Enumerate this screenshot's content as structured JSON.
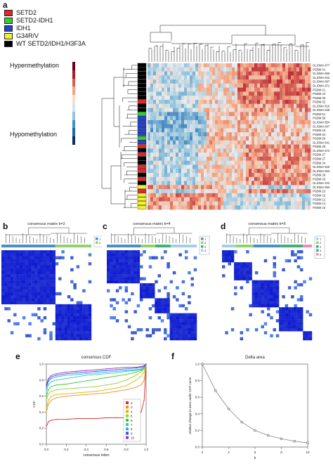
{
  "panel_letters": {
    "a": "a",
    "b": "b",
    "c": "c",
    "d": "d",
    "e": "e",
    "f": "f"
  },
  "legend": [
    {
      "label": "SETD2",
      "color": "#e8262a"
    },
    {
      "label": "SETD2-IDH1",
      "color": "#33cc33"
    },
    {
      "label": "IDH1",
      "color": "#2244cc"
    },
    {
      "label": "G34R/V",
      "color": "#f2f22a"
    },
    {
      "label": "WT SETD2/IDH1/H3F3A",
      "color": "#000000"
    }
  ],
  "colorbar": {
    "top_label": "Hypermethylation",
    "bottom_label": "Hypomethylation",
    "colors": [
      "#67001f",
      "#b2182b",
      "#d6604d",
      "#f4a582",
      "#fddbc7",
      "#d1e5f0",
      "#92c5de",
      "#4393c3",
      "#2166ac",
      "#053061"
    ]
  },
  "chart_data": [
    {
      "type": "heatmap",
      "panel": "a",
      "row_labels": [
        "GLIOMA 677",
        "PGBM 41",
        "GLIOMA 869",
        "GLIOMA 642",
        "GLIOMA 667",
        "GLIOMA 671",
        "PGBM 21",
        "PGBM 44",
        "PGBM 35",
        "PGBM 32",
        "GLIOMA 810",
        "GLIOMA 649",
        "PGBM 51",
        "PGBM 58",
        "GLIOMA 854",
        "GLIOMA 647",
        "PGBM 18",
        "PGBM 54",
        "PGBM 59",
        "GLIOMA 641",
        "PGBM 35",
        "GLIOMA 672",
        "PGBM 27",
        "PGBM 27",
        "PGBM 34",
        "GLIOMA 626",
        "GLIOMA 663",
        "PGBM 28",
        "PGBM 43",
        "GLIOMA 102",
        "GLIOMA 893",
        "PGBM 22",
        "PGBM 15",
        "PGBM 12",
        "PGBM 14",
        "PGBM 16"
      ],
      "row_groups": [
        "WT",
        "WT",
        "WT",
        "WT",
        "WT",
        "WT",
        "WT",
        "WT",
        "WT",
        "SETD2",
        "WT",
        "WT",
        "SETD2-IDH1",
        "IDH1",
        "IDH1",
        "IDH1",
        "IDH1",
        "IDH1",
        "SETD2-IDH1",
        "IDH1",
        "SETD2",
        "WT",
        "SETD2",
        "WT",
        "WT",
        "SETD2",
        "SETD2",
        "WT",
        "SETD2",
        "WT",
        "G34R/V",
        "SETD2",
        "G34R/V",
        "G34R/V",
        "G34R/V",
        "G34R/V"
      ],
      "color_scale": [
        "Hypomethylation",
        "Hypermethylation"
      ]
    },
    {
      "type": "heatmap",
      "panel": "b",
      "title": "consensus matrix k=2",
      "k": 2,
      "legend": [
        "1",
        "2"
      ],
      "cluster_colors": [
        "#4a90c2",
        "#8fd36a"
      ],
      "cluster_fractions": [
        0.6,
        0.4
      ]
    },
    {
      "type": "heatmap",
      "panel": "c",
      "title": "consensus matrix k=4",
      "k": 4,
      "legend": [
        "1",
        "2",
        "3",
        "4"
      ],
      "cluster_colors": [
        "#4a90c2",
        "#8fd36a",
        "#3fb07a",
        "#a6cee3"
      ],
      "cluster_fractions": [
        0.38,
        0.16,
        0.17,
        0.29
      ]
    },
    {
      "type": "heatmap",
      "panel": "d",
      "title": "consensus matrix k=5",
      "k": 5,
      "legend": [
        "1",
        "2",
        "3",
        "4",
        "5"
      ],
      "cluster_colors": [
        "#a6cee3",
        "#8fd36a",
        "#4a90c2",
        "#3fb07a",
        "#f08cb8"
      ],
      "cluster_fractions": [
        0.15,
        0.2,
        0.3,
        0.25,
        0.1
      ]
    },
    {
      "type": "line",
      "panel": "e",
      "title": "consensus CDF",
      "xlabel": "consensus index",
      "ylabel": "CDF",
      "xlim": [
        0,
        1
      ],
      "ylim": [
        0,
        1
      ],
      "xticks": [
        "0.0",
        "0.2",
        "0.4",
        "0.6",
        "0.8",
        "1.0"
      ],
      "yticks": [
        "0.0",
        "0.2",
        "0.4",
        "0.6",
        "0.8",
        "1.0"
      ],
      "x": [
        0.0,
        0.02,
        0.05,
        0.1,
        0.2,
        0.3,
        0.4,
        0.5,
        0.6,
        0.7,
        0.8,
        0.9,
        0.95,
        0.98,
        1.0
      ],
      "series": [
        {
          "name": "2",
          "color": "#e8262a",
          "values": [
            0.22,
            0.28,
            0.3,
            0.31,
            0.31,
            0.32,
            0.32,
            0.32,
            0.33,
            0.33,
            0.33,
            0.34,
            0.4,
            0.55,
            1.0
          ]
        },
        {
          "name": "3",
          "color": "#f28c28",
          "values": [
            0.4,
            0.5,
            0.55,
            0.58,
            0.6,
            0.61,
            0.62,
            0.63,
            0.64,
            0.66,
            0.68,
            0.71,
            0.74,
            0.8,
            1.0
          ]
        },
        {
          "name": "4",
          "color": "#d9b800",
          "values": [
            0.45,
            0.55,
            0.6,
            0.62,
            0.63,
            0.64,
            0.65,
            0.66,
            0.68,
            0.7,
            0.73,
            0.8,
            0.85,
            0.9,
            1.0
          ]
        },
        {
          "name": "5",
          "color": "#9acd32",
          "values": [
            0.55,
            0.63,
            0.66,
            0.68,
            0.69,
            0.7,
            0.71,
            0.72,
            0.74,
            0.76,
            0.8,
            0.86,
            0.9,
            0.94,
            1.0
          ]
        },
        {
          "name": "6",
          "color": "#33cc33",
          "values": [
            0.6,
            0.68,
            0.72,
            0.74,
            0.75,
            0.77,
            0.79,
            0.81,
            0.83,
            0.85,
            0.87,
            0.9,
            0.92,
            0.95,
            1.0
          ]
        },
        {
          "name": "7",
          "color": "#33ccaa",
          "values": [
            0.66,
            0.74,
            0.78,
            0.8,
            0.82,
            0.84,
            0.86,
            0.87,
            0.88,
            0.89,
            0.91,
            0.92,
            0.93,
            0.95,
            1.0
          ]
        },
        {
          "name": "8",
          "color": "#33aaee",
          "values": [
            0.7,
            0.78,
            0.82,
            0.84,
            0.86,
            0.87,
            0.88,
            0.89,
            0.9,
            0.91,
            0.92,
            0.93,
            0.94,
            0.96,
            1.0
          ]
        },
        {
          "name": "9",
          "color": "#3355cc",
          "values": [
            0.72,
            0.8,
            0.84,
            0.86,
            0.88,
            0.89,
            0.9,
            0.91,
            0.92,
            0.93,
            0.94,
            0.95,
            0.96,
            0.97,
            1.0
          ]
        },
        {
          "name": "10",
          "color": "#9933cc",
          "values": [
            0.74,
            0.82,
            0.86,
            0.88,
            0.9,
            0.91,
            0.92,
            0.93,
            0.94,
            0.95,
            0.96,
            0.96,
            0.97,
            0.98,
            1.0
          ]
        }
      ]
    },
    {
      "type": "line",
      "panel": "f",
      "title": "Delta area",
      "xlabel": "k",
      "ylabel": "relative change in area under CDF curve",
      "xlim": [
        2,
        10
      ],
      "ylim": [
        0,
        1.0
      ],
      "xticks": [
        "2",
        "4",
        "6",
        "8",
        "10"
      ],
      "yticks": [
        "0.0",
        "0.2",
        "0.4",
        "0.6",
        "0.8",
        "1.0"
      ],
      "x": [
        2,
        3,
        4,
        5,
        6,
        7,
        8,
        9,
        10
      ],
      "values": [
        1.0,
        0.68,
        0.46,
        0.3,
        0.2,
        0.14,
        0.1,
        0.07,
        0.05
      ]
    }
  ]
}
